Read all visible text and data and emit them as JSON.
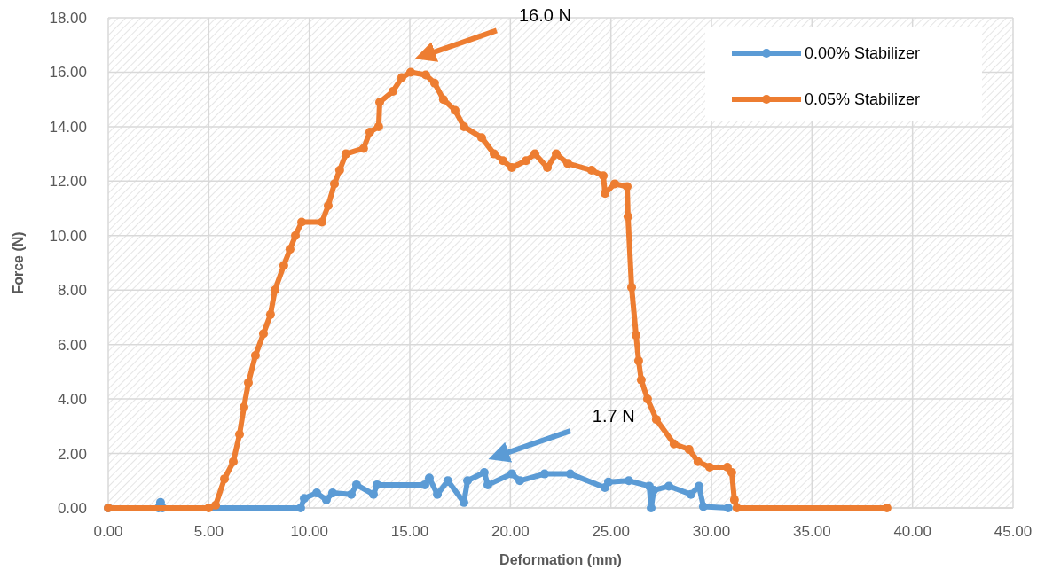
{
  "chart_data": {
    "type": "line",
    "xlabel": "Deformation (mm)",
    "ylabel": "Force (N)",
    "xlim": [
      0,
      45
    ],
    "xticks": [
      {
        "value": 0,
        "label": "0.00"
      },
      {
        "value": 5,
        "label": "5.00"
      },
      {
        "value": 10,
        "label": "10.00"
      },
      {
        "value": 15,
        "label": "15.00"
      },
      {
        "value": 20,
        "label": "20.00"
      },
      {
        "value": 25,
        "label": "25.00"
      },
      {
        "value": 30,
        "label": "30.00"
      },
      {
        "value": 35,
        "label": "35.00"
      },
      {
        "value": 40,
        "label": "40.00"
      },
      {
        "value": 45,
        "label": "45.00"
      }
    ],
    "ylim": [
      0,
      18
    ],
    "yticks": [
      {
        "value": 0,
        "label": "0.00"
      },
      {
        "value": 2,
        "label": "2.00"
      },
      {
        "value": 4,
        "label": "4.00"
      },
      {
        "value": 6,
        "label": "6.00"
      },
      {
        "value": 8,
        "label": "8.00"
      },
      {
        "value": 10,
        "label": "10.00"
      },
      {
        "value": 12,
        "label": "12.00"
      },
      {
        "value": 14,
        "label": "14.00"
      },
      {
        "value": 16,
        "label": "16.00"
      },
      {
        "value": 18,
        "label": "18.00"
      }
    ],
    "grid": true,
    "legend": "top right",
    "marker": "circle",
    "line_style": "solid",
    "series": [
      {
        "name": "0.00% Stabilizer",
        "color": "#5b9bd5",
        "x": [
          0,
          2.5,
          2.6,
          2.7,
          9.57,
          9.75,
          10.37,
          10.85,
          11.16,
          12.09,
          12.35,
          13.19,
          13.37,
          15.75,
          15.97,
          16.37,
          16.89,
          17.69,
          17.87,
          18.7,
          18.88,
          20.07,
          20.47,
          21.7,
          22.98,
          24.7,
          24.88,
          25.89,
          26.91,
          27.0,
          27.13,
          27.88,
          28.98,
          29.38,
          29.6,
          30.83
        ],
        "values": [
          0,
          0,
          0.2,
          0,
          0,
          0.35,
          0.55,
          0.3,
          0.55,
          0.5,
          0.85,
          0.5,
          0.85,
          0.85,
          1.1,
          0.5,
          1.0,
          0.2,
          1.0,
          1.3,
          0.85,
          1.25,
          1.0,
          1.25,
          1.25,
          0.75,
          0.95,
          1.0,
          0.8,
          0,
          0.65,
          0.8,
          0.5,
          0.8,
          0.05,
          0
        ]
      },
      {
        "name": "0.05% Stabilizer",
        "color": "#ed7d31",
        "x": [
          0,
          5.0,
          5.34,
          5.78,
          6.22,
          6.53,
          6.75,
          6.97,
          7.32,
          7.72,
          8.07,
          8.29,
          8.73,
          9.04,
          9.31,
          9.62,
          10.63,
          10.94,
          11.25,
          11.51,
          11.82,
          12.7,
          13.01,
          13.45,
          13.5,
          14.16,
          14.6,
          15.04,
          15.79,
          16.23,
          16.67,
          17.25,
          17.69,
          18.57,
          19.19,
          19.63,
          20.07,
          20.78,
          21.22,
          21.84,
          22.28,
          22.85,
          24.04,
          24.62,
          24.71,
          25.19,
          25.81,
          25.85,
          26.03,
          26.25,
          26.38,
          26.51,
          26.82,
          27.26,
          28.14,
          28.89,
          29.33,
          29.91,
          30.79,
          31.01,
          31.14,
          31.27,
          38.73
        ],
        "values": [
          0,
          0,
          0.1,
          1.07,
          1.7,
          2.7,
          3.7,
          4.6,
          5.6,
          6.4,
          7.1,
          8.0,
          8.9,
          9.5,
          10.0,
          10.5,
          10.5,
          11.1,
          11.9,
          12.4,
          13.0,
          13.2,
          13.8,
          14.0,
          14.9,
          15.3,
          15.8,
          16.0,
          15.9,
          15.6,
          15.0,
          14.6,
          14.0,
          13.6,
          13.0,
          12.75,
          12.5,
          12.75,
          13.0,
          12.5,
          13.0,
          12.65,
          12.4,
          12.2,
          11.55,
          11.9,
          11.8,
          10.7,
          8.1,
          6.35,
          5.4,
          4.7,
          4.0,
          3.25,
          2.35,
          2.15,
          1.7,
          1.5,
          1.5,
          1.3,
          0.3,
          0,
          0
        ]
      }
    ],
    "annotations": [
      "16.0 N",
      "1.7 N"
    ]
  }
}
